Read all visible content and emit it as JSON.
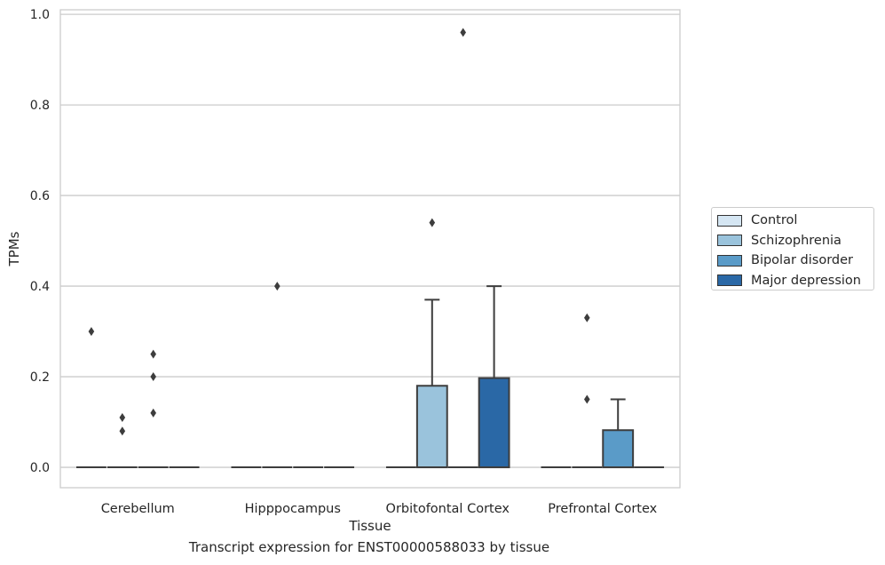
{
  "chart_data": {
    "type": "box",
    "xlabel": "Tissue",
    "ylabel": "TPMs",
    "caption": "Transcript expression for ENST00000588033 by tissue",
    "ylim": [
      -0.045,
      1.01
    ],
    "yticks": [
      "0.0",
      "0.2",
      "0.4",
      "0.6",
      "0.8",
      "1.0"
    ],
    "grid": "horizontal",
    "legend_position": "right",
    "categories": [
      "Cerebellum",
      "Hipppocampus",
      "Orbitofontal Cortex",
      "Prefrontal Cortex"
    ],
    "series": [
      {
        "name": "Control",
        "color": "#d5e6f3",
        "boxes": [
          {
            "q1": 0,
            "median": 0,
            "q3": 0,
            "whisker_low": 0,
            "whisker_high": 0,
            "outliers": [
              0.3
            ]
          },
          {
            "q1": 0,
            "median": 0,
            "q3": 0,
            "whisker_low": 0,
            "whisker_high": 0,
            "outliers": []
          },
          {
            "q1": 0,
            "median": 0,
            "q3": 0,
            "whisker_low": 0,
            "whisker_high": 0,
            "outliers": []
          },
          {
            "q1": 0,
            "median": 0,
            "q3": 0,
            "whisker_low": 0,
            "whisker_high": 0,
            "outliers": []
          }
        ]
      },
      {
        "name": "Schizophrenia",
        "color": "#9ac3dc",
        "boxes": [
          {
            "q1": 0,
            "median": 0,
            "q3": 0,
            "whisker_low": 0,
            "whisker_high": 0,
            "outliers": [
              0.08,
              0.11
            ]
          },
          {
            "q1": 0,
            "median": 0,
            "q3": 0,
            "whisker_low": 0,
            "whisker_high": 0,
            "outliers": [
              0.4
            ]
          },
          {
            "q1": 0,
            "median": 0,
            "q3": 0.18,
            "whisker_low": 0,
            "whisker_high": 0.37,
            "outliers": [
              0.54
            ]
          },
          {
            "q1": 0,
            "median": 0,
            "q3": 0,
            "whisker_low": 0,
            "whisker_high": 0,
            "outliers": [
              0.33,
              0.15
            ]
          }
        ]
      },
      {
        "name": "Bipolar disorder",
        "color": "#5a9bc8",
        "boxes": [
          {
            "q1": 0,
            "median": 0,
            "q3": 0,
            "whisker_low": 0,
            "whisker_high": 0,
            "outliers": [
              0.25,
              0.2,
              0.12
            ]
          },
          {
            "q1": 0,
            "median": 0,
            "q3": 0,
            "whisker_low": 0,
            "whisker_high": 0,
            "outliers": []
          },
          {
            "q1": 0,
            "median": 0,
            "q3": 0,
            "whisker_low": 0,
            "whisker_high": 0,
            "outliers": [
              0.96
            ]
          },
          {
            "q1": 0,
            "median": 0,
            "q3": 0.082,
            "whisker_low": 0,
            "whisker_high": 0.15,
            "outliers": []
          }
        ]
      },
      {
        "name": "Major depression",
        "color": "#2a68a6",
        "boxes": [
          {
            "q1": 0,
            "median": 0,
            "q3": 0,
            "whisker_low": 0,
            "whisker_high": 0,
            "outliers": []
          },
          {
            "q1": 0,
            "median": 0,
            "q3": 0,
            "whisker_low": 0,
            "whisker_high": 0,
            "outliers": []
          },
          {
            "q1": 0,
            "median": 0,
            "q3": 0.197,
            "whisker_low": 0,
            "whisker_high": 0.4,
            "outliers": []
          },
          {
            "q1": 0,
            "median": 0,
            "q3": 0,
            "whisker_low": 0,
            "whisker_high": 0,
            "outliers": []
          }
        ]
      }
    ]
  }
}
